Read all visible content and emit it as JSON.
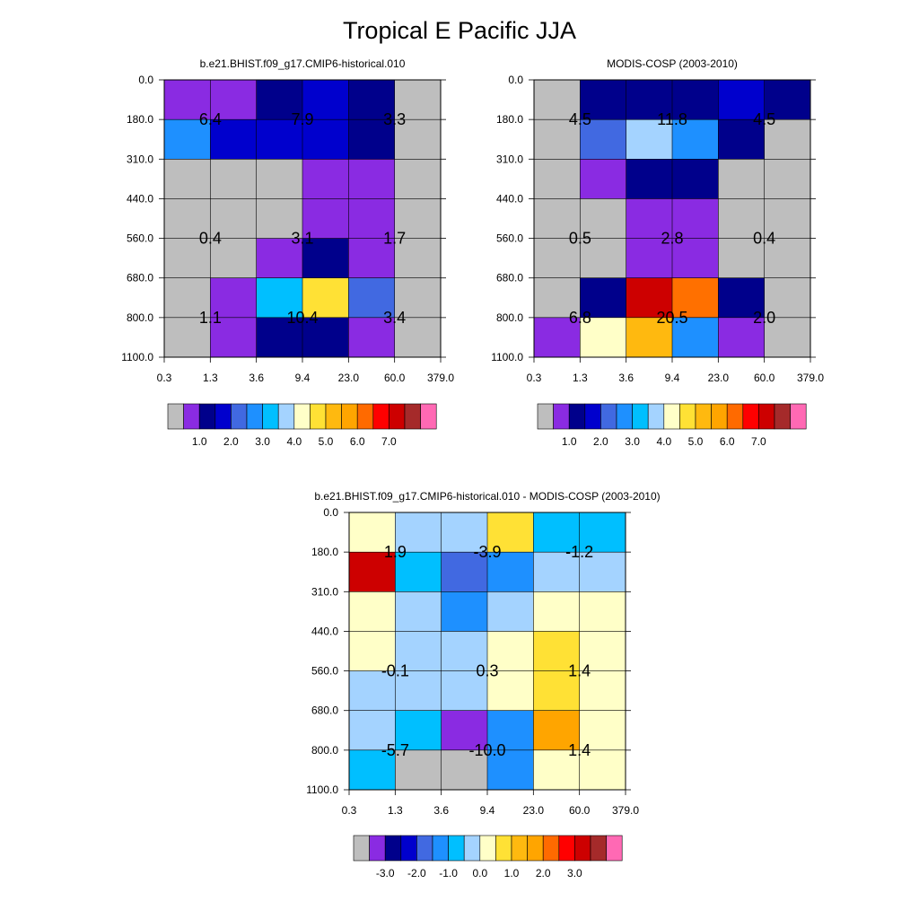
{
  "figure": {
    "title": "Tropical E Pacific JJA"
  },
  "chart_data": [
    {
      "id": "model",
      "type": "heatmap",
      "title": "b.e21.BHIST.f09_g17.CMIP6-historical.010",
      "xlabel": "",
      "ylabel": "",
      "x_ticks": [
        "0.3",
        "1.3",
        "3.6",
        "9.4",
        "23.0",
        "60.0",
        "379.0"
      ],
      "y_ticks": [
        "0.0",
        "180.0",
        "310.0",
        "440.0",
        "560.0",
        "680.0",
        "800.0",
        "1100.0"
      ],
      "cell_colors": [
        [
          "#8a2be2",
          "#8a2be2",
          "#00008b",
          "#0000cd",
          "#00008b",
          "#bebebe"
        ],
        [
          "#1e90ff",
          "#0000cd",
          "#0000cd",
          "#0000cd",
          "#00008b",
          "#bebebe"
        ],
        [
          "#bebebe",
          "#bebebe",
          "#bebebe",
          "#8a2be2",
          "#8a2be2",
          "#bebebe"
        ],
        [
          "#bebebe",
          "#bebebe",
          "#bebebe",
          "#8a2be2",
          "#8a2be2",
          "#bebebe"
        ],
        [
          "#bebebe",
          "#bebebe",
          "#8a2be2",
          "#00008b",
          "#8a2be2",
          "#bebebe"
        ],
        [
          "#bebebe",
          "#8a2be2",
          "#00bfff",
          "#ffe135",
          "#4169e1",
          "#bebebe"
        ],
        [
          "#bebebe",
          "#8a2be2",
          "#00008b",
          "#00008b",
          "#8a2be2",
          "#bebebe"
        ]
      ],
      "annotations": [
        {
          "text": "6.4",
          "col": 1,
          "row": 1
        },
        {
          "text": "7.9",
          "col": 3,
          "row": 1
        },
        {
          "text": "3.3",
          "col": 5,
          "row": 1
        },
        {
          "text": "0.4",
          "col": 1,
          "row": 4
        },
        {
          "text": "3.1",
          "col": 3,
          "row": 4
        },
        {
          "text": "1.7",
          "col": 5,
          "row": 4
        },
        {
          "text": "1.1",
          "col": 1,
          "row": 6
        },
        {
          "text": "10.4",
          "col": 3,
          "row": 6
        },
        {
          "text": "3.4",
          "col": 5,
          "row": 6
        }
      ],
      "colorbar": {
        "colors": [
          "#bebebe",
          "#8a2be2",
          "#00008b",
          "#0000cd",
          "#4169e1",
          "#1e90ff",
          "#00bfff",
          "#a4d3ff",
          "#ffffc8",
          "#ffe135",
          "#ffb90f",
          "#ffa500",
          "#ff6a00",
          "#ff0000",
          "#cd0000",
          "#a52a2a",
          "#ff69b4"
        ],
        "labels": [
          {
            "text": "1.0",
            "edge": 2
          },
          {
            "text": "2.0",
            "edge": 4
          },
          {
            "text": "3.0",
            "edge": 6
          },
          {
            "text": "4.0",
            "edge": 8
          },
          {
            "text": "5.0",
            "edge": 10
          },
          {
            "text": "6.0",
            "edge": 12
          },
          {
            "text": "7.0",
            "edge": 14
          }
        ]
      }
    },
    {
      "id": "obs",
      "type": "heatmap",
      "title": "MODIS-COSP (2003-2010)",
      "xlabel": "",
      "ylabel": "",
      "x_ticks": [
        "0.3",
        "1.3",
        "3.6",
        "9.4",
        "23.0",
        "60.0",
        "379.0"
      ],
      "y_ticks": [
        "0.0",
        "180.0",
        "310.0",
        "440.0",
        "560.0",
        "680.0",
        "800.0",
        "1100.0"
      ],
      "cell_colors": [
        [
          "#bebebe",
          "#00008b",
          "#00008b",
          "#00008b",
          "#0000cd",
          "#00008b"
        ],
        [
          "#bebebe",
          "#4169e1",
          "#a4d3ff",
          "#1e90ff",
          "#00008b",
          "#bebebe"
        ],
        [
          "#bebebe",
          "#8a2be2",
          "#00008b",
          "#00008b",
          "#bebebe",
          "#bebebe"
        ],
        [
          "#bebebe",
          "#bebebe",
          "#8a2be2",
          "#8a2be2",
          "#bebebe",
          "#bebebe"
        ],
        [
          "#bebebe",
          "#bebebe",
          "#8a2be2",
          "#8a2be2",
          "#bebebe",
          "#bebebe"
        ],
        [
          "#bebebe",
          "#00008b",
          "#cd0000",
          "#ff7000",
          "#00008b",
          "#bebebe"
        ],
        [
          "#8a2be2",
          "#ffffc8",
          "#ffb90f",
          "#1e90ff",
          "#8a2be2",
          "#bebebe"
        ]
      ],
      "annotations": [
        {
          "text": "4.5",
          "col": 1,
          "row": 1
        },
        {
          "text": "11.8",
          "col": 3,
          "row": 1
        },
        {
          "text": "4.5",
          "col": 5,
          "row": 1
        },
        {
          "text": "0.5",
          "col": 1,
          "row": 4
        },
        {
          "text": "2.8",
          "col": 3,
          "row": 4
        },
        {
          "text": "0.4",
          "col": 5,
          "row": 4
        },
        {
          "text": "6.8",
          "col": 1,
          "row": 6
        },
        {
          "text": "20.5",
          "col": 3,
          "row": 6
        },
        {
          "text": "2.0",
          "col": 5,
          "row": 6
        }
      ],
      "colorbar": {
        "colors": [
          "#bebebe",
          "#8a2be2",
          "#00008b",
          "#0000cd",
          "#4169e1",
          "#1e90ff",
          "#00bfff",
          "#a4d3ff",
          "#ffffc8",
          "#ffe135",
          "#ffb90f",
          "#ffa500",
          "#ff6a00",
          "#ff0000",
          "#cd0000",
          "#a52a2a",
          "#ff69b4"
        ],
        "labels": [
          {
            "text": "1.0",
            "edge": 2
          },
          {
            "text": "2.0",
            "edge": 4
          },
          {
            "text": "3.0",
            "edge": 6
          },
          {
            "text": "4.0",
            "edge": 8
          },
          {
            "text": "5.0",
            "edge": 10
          },
          {
            "text": "6.0",
            "edge": 12
          },
          {
            "text": "7.0",
            "edge": 14
          }
        ]
      }
    },
    {
      "id": "diff",
      "type": "heatmap",
      "title": "b.e21.BHIST.f09_g17.CMIP6-historical.010 - MODIS-COSP (2003-2010)",
      "xlabel": "",
      "ylabel": "",
      "x_ticks": [
        "0.3",
        "1.3",
        "3.6",
        "9.4",
        "23.0",
        "60.0",
        "379.0"
      ],
      "y_ticks": [
        "0.0",
        "180.0",
        "310.0",
        "440.0",
        "560.0",
        "680.0",
        "800.0",
        "1100.0"
      ],
      "cell_colors": [
        [
          "#ffffc8",
          "#a4d3ff",
          "#a4d3ff",
          "#ffe135",
          "#00bfff",
          "#00bfff"
        ],
        [
          "#cd0000",
          "#00bfff",
          "#4169e1",
          "#1e90ff",
          "#a4d3ff",
          "#a4d3ff"
        ],
        [
          "#ffffc8",
          "#a4d3ff",
          "#1e90ff",
          "#a4d3ff",
          "#ffffc8",
          "#ffffc8"
        ],
        [
          "#ffffc8",
          "#a4d3ff",
          "#a4d3ff",
          "#ffffc8",
          "#ffe135",
          "#ffffc8"
        ],
        [
          "#a4d3ff",
          "#a4d3ff",
          "#a4d3ff",
          "#ffffc8",
          "#ffe135",
          "#ffffc8"
        ],
        [
          "#a4d3ff",
          "#00bfff",
          "#8a2be2",
          "#1e90ff",
          "#ffa500",
          "#ffffc8"
        ],
        [
          "#00bfff",
          "#bebebe",
          "#bebebe",
          "#1e90ff",
          "#ffffc8",
          "#ffffc8"
        ]
      ],
      "annotations": [
        {
          "text": "1.9",
          "col": 1,
          "row": 1
        },
        {
          "text": "-3.9",
          "col": 3,
          "row": 1
        },
        {
          "text": "-1.2",
          "col": 5,
          "row": 1
        },
        {
          "text": "-0.1",
          "col": 1,
          "row": 4
        },
        {
          "text": "0.3",
          "col": 3,
          "row": 4
        },
        {
          "text": "1.4",
          "col": 5,
          "row": 4
        },
        {
          "text": "-5.7",
          "col": 1,
          "row": 6
        },
        {
          "text": "-10.0",
          "col": 3,
          "row": 6
        },
        {
          "text": "1.4",
          "col": 5,
          "row": 6
        }
      ],
      "colorbar": {
        "colors": [
          "#bebebe",
          "#8a2be2",
          "#00008b",
          "#0000cd",
          "#4169e1",
          "#1e90ff",
          "#00bfff",
          "#a4d3ff",
          "#ffffc8",
          "#ffe135",
          "#ffb90f",
          "#ffa500",
          "#ff6a00",
          "#ff0000",
          "#cd0000",
          "#a52a2a",
          "#ff69b4"
        ],
        "labels": [
          {
            "text": "-3.0",
            "edge": 2
          },
          {
            "text": "-2.0",
            "edge": 4
          },
          {
            "text": "-1.0",
            "edge": 6
          },
          {
            "text": "0.0",
            "edge": 8
          },
          {
            "text": "1.0",
            "edge": 10
          },
          {
            "text": "2.0",
            "edge": 12
          },
          {
            "text": "3.0",
            "edge": 14
          }
        ]
      }
    }
  ]
}
